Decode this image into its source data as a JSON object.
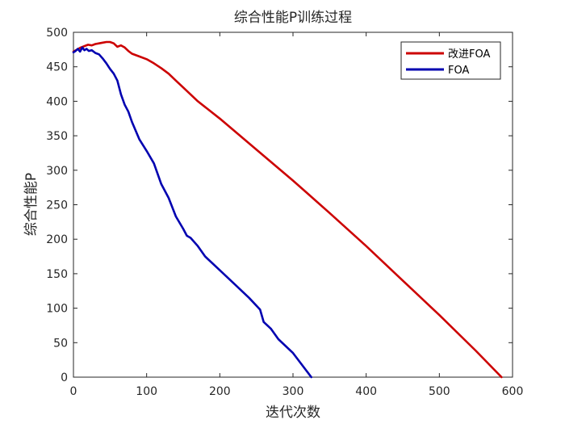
{
  "chart_data": {
    "type": "line",
    "title": "综合性能P训练过程",
    "xlabel": "迭代次数",
    "ylabel": "综合性能P",
    "xlim": [
      0,
      600
    ],
    "ylim": [
      0,
      500
    ],
    "xticks": [
      0,
      100,
      200,
      300,
      400,
      500,
      600
    ],
    "yticks": [
      0,
      50,
      100,
      150,
      200,
      250,
      300,
      350,
      400,
      450,
      500
    ],
    "grid": false,
    "legend_position": "top-right",
    "series": [
      {
        "name": "改进FOA",
        "color": "#cc0000",
        "x": [
          0,
          5,
          10,
          15,
          20,
          25,
          30,
          35,
          40,
          45,
          50,
          55,
          60,
          65,
          70,
          75,
          80,
          90,
          100,
          110,
          120,
          130,
          140,
          150,
          170,
          200,
          250,
          300,
          350,
          400,
          450,
          500,
          550,
          585
        ],
        "y": [
          472,
          475,
          478,
          480,
          482,
          481,
          483,
          484,
          485,
          486,
          486,
          484,
          479,
          481,
          478,
          473,
          469,
          465,
          461,
          455,
          448,
          440,
          430,
          420,
          400,
          375,
          330,
          285,
          238,
          190,
          140,
          90,
          38,
          0
        ]
      },
      {
        "name": "FOA",
        "color": "#0000b0",
        "x": [
          0,
          3,
          6,
          9,
          12,
          15,
          18,
          21,
          25,
          30,
          35,
          40,
          45,
          50,
          55,
          60,
          65,
          70,
          75,
          80,
          90,
          100,
          110,
          120,
          130,
          140,
          150,
          155,
          160,
          170,
          180,
          200,
          220,
          240,
          255,
          260,
          270,
          280,
          300,
          325
        ],
        "y": [
          471,
          473,
          476,
          472,
          478,
          474,
          476,
          473,
          474,
          470,
          468,
          462,
          455,
          447,
          440,
          430,
          410,
          395,
          385,
          370,
          345,
          328,
          310,
          280,
          260,
          233,
          215,
          205,
          202,
          190,
          175,
          155,
          135,
          115,
          98,
          80,
          70,
          55,
          35,
          0
        ]
      }
    ]
  }
}
